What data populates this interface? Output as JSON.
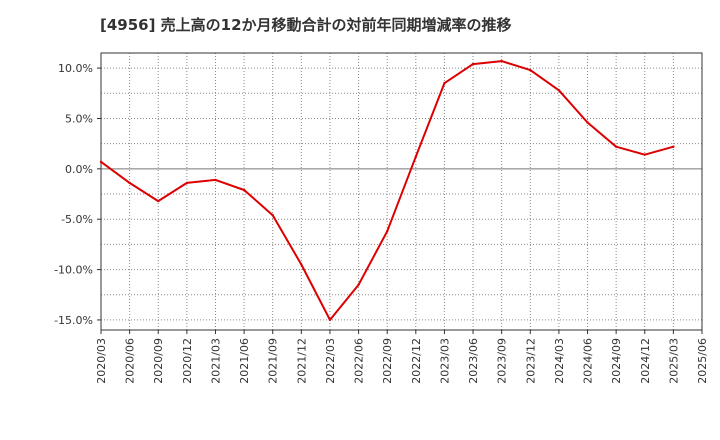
{
  "chart_data": {
    "type": "line",
    "title": "[4956]  売上高の12か月移動合計の対前年同期増減率の推移",
    "xlabel": "",
    "ylabel": "",
    "ylim": [
      -16,
      11.5
    ],
    "y_ticks": [
      10,
      5,
      0,
      -5,
      -10,
      -15
    ],
    "y_tick_labels": [
      "10.0%",
      "5.0%",
      "0.0%",
      "-5.0%",
      "-10.0%",
      "-15.0%"
    ],
    "categories": [
      "2020/03",
      "2020/06",
      "2020/09",
      "2020/12",
      "2021/03",
      "2021/06",
      "2021/09",
      "2021/12",
      "2022/03",
      "2022/06",
      "2022/09",
      "2022/12",
      "2023/03",
      "2023/06",
      "2023/09",
      "2023/12",
      "2024/03",
      "2024/06",
      "2024/09",
      "2024/12",
      "2025/03",
      "2025/06"
    ],
    "series": [
      {
        "name": "増減率",
        "color": "#dd0000",
        "values": [
          0.7,
          -1.4,
          -3.2,
          -1.4,
          -1.1,
          -2.1,
          -4.6,
          -9.5,
          -15.0,
          -11.5,
          -6.2,
          1.2,
          8.5,
          10.4,
          10.7,
          9.8,
          7.8,
          4.6,
          2.2,
          1.4,
          2.2,
          null
        ]
      }
    ],
    "grid": true
  }
}
